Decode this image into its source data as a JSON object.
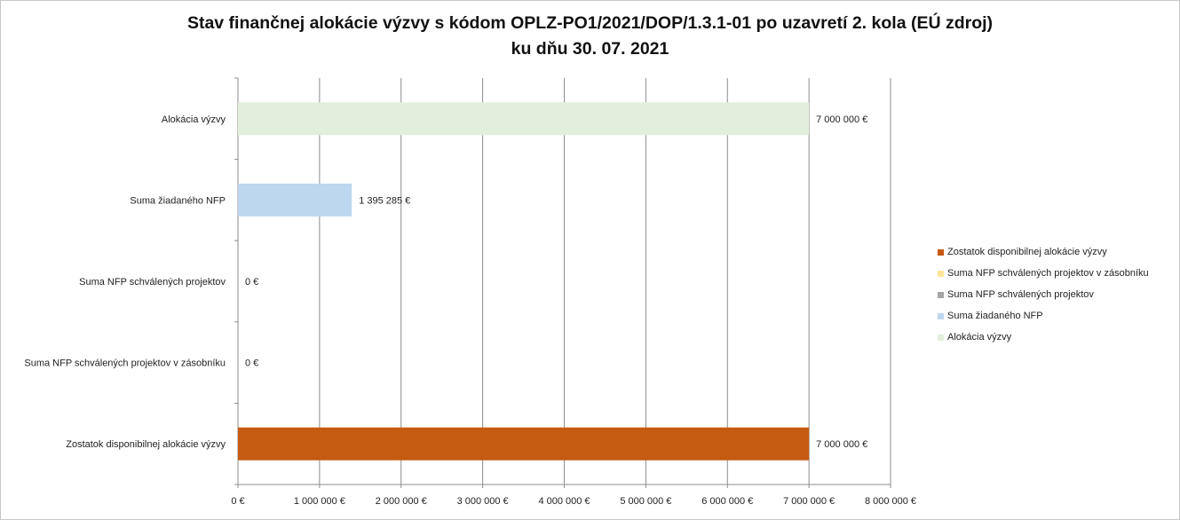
{
  "title_line1": "Stav finančnej alokácie výzvy s kódom OPLZ-PO1/2021/DOP/1.3.1-01 po uzavretí 2. kola (EÚ zdroj)",
  "title_line2": "ku dňu 30. 07. 2021",
  "chart_data": {
    "type": "bar",
    "orientation": "horizontal",
    "categories": [
      "Alokácia výzvy",
      "Suma žiadaného NFP",
      "Suma NFP schválených projektov",
      "Suma NFP schválených projektov v zásobníku",
      "Zostatok disponibilnej alokácie výzvy"
    ],
    "values": [
      7000000,
      1395285,
      0,
      0,
      7000000
    ],
    "data_labels": [
      "7 000 000 €",
      "1 395 285 €",
      "0 €",
      "0 €",
      "7 000 000 €"
    ],
    "colors": [
      "#e2efda",
      "#bdd7ee",
      "#a5a5a5",
      "#ffe699",
      "#c55a11"
    ],
    "xlim": [
      0,
      8000000
    ],
    "x_ticks": [
      0,
      1000000,
      2000000,
      3000000,
      4000000,
      5000000,
      6000000,
      7000000,
      8000000
    ],
    "x_tick_labels": [
      "0 €",
      "1 000 000 €",
      "2 000 000 €",
      "3 000 000 €",
      "4 000 000 €",
      "5 000 000 €",
      "6 000 000 €",
      "7 000 000 €",
      "8 000 000 €"
    ],
    "grid": true,
    "legend_position": "right",
    "legend": [
      {
        "name": "Zostatok disponibilnej alokácie výzvy",
        "color": "#c55a11"
      },
      {
        "name": "Suma NFP schválených projektov v zásobníku",
        "color": "#ffe699"
      },
      {
        "name": "Suma NFP schválených projektov",
        "color": "#a5a5a5"
      },
      {
        "name": "Suma žiadaného NFP",
        "color": "#bdd7ee"
      },
      {
        "name": "Alokácia výzvy",
        "color": "#e2efda"
      }
    ]
  }
}
